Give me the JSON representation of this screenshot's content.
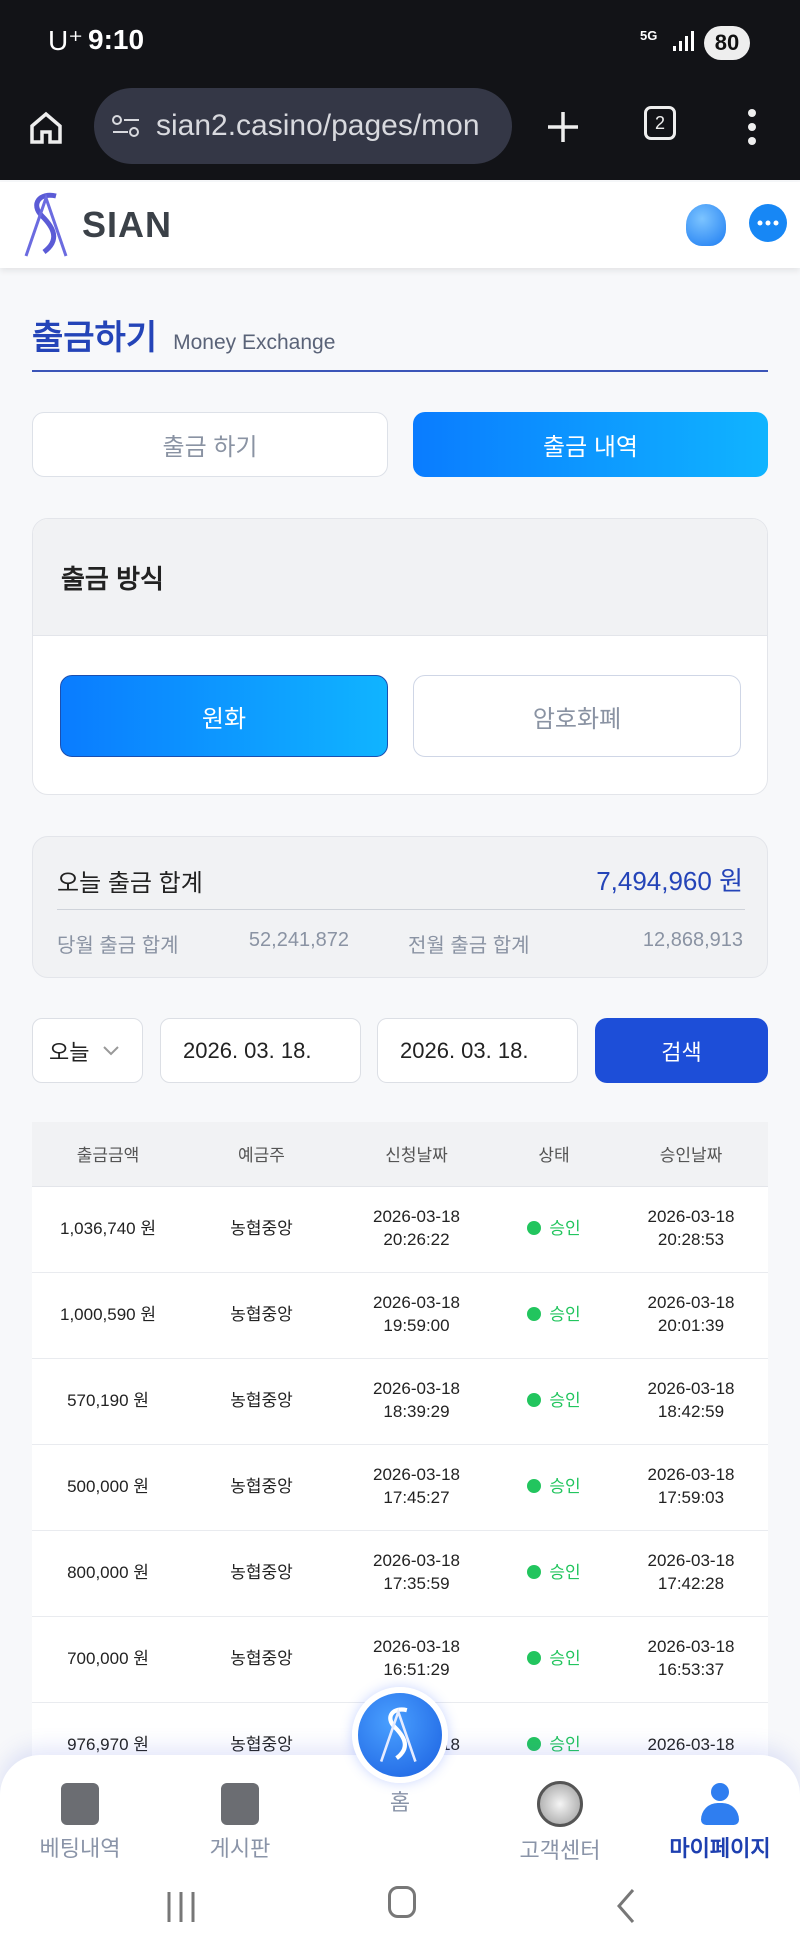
{
  "status_bar": {
    "carrier": "U⁺",
    "time": "9:10",
    "network": "5G",
    "battery": "80"
  },
  "browser": {
    "url": "sian2.casino/pages/mon",
    "tab_count": "2"
  },
  "header": {
    "logo_text": "SIAN"
  },
  "page": {
    "title": "출금하기",
    "subtitle": "Money Exchange"
  },
  "tabs": [
    {
      "label": "출금 하기",
      "active": false
    },
    {
      "label": "출금 내역",
      "active": true
    }
  ],
  "method": {
    "title": "출금 방식",
    "options": [
      {
        "label": "원화",
        "active": true
      },
      {
        "label": "암호화폐",
        "active": false
      }
    ]
  },
  "summary": {
    "today_label": "오늘 출금 합계",
    "today_value": "7,494,960 원",
    "month_label": "당월 출금 합계",
    "month_value": "52,241,872",
    "prev_label": "전월 출금 합계",
    "prev_value": "12,868,913"
  },
  "filter": {
    "period": "오늘",
    "start_date": "2026. 03. 18.",
    "end_date": "2026. 03. 18.",
    "search_label": "검색"
  },
  "table": {
    "headers": [
      "출금금액",
      "예금주",
      "신청날짜",
      "상태",
      "승인날짜"
    ],
    "rows": [
      {
        "amount": "1,036,740 원",
        "holder": "농협중앙",
        "req_date": "2026-03-18",
        "req_time": "20:26:22",
        "status": "승인",
        "appr_date": "2026-03-18",
        "appr_time": "20:28:53"
      },
      {
        "amount": "1,000,590 원",
        "holder": "농협중앙",
        "req_date": "2026-03-18",
        "req_time": "19:59:00",
        "status": "승인",
        "appr_date": "2026-03-18",
        "appr_time": "20:01:39"
      },
      {
        "amount": "570,190 원",
        "holder": "농협중앙",
        "req_date": "2026-03-18",
        "req_time": "18:39:29",
        "status": "승인",
        "appr_date": "2026-03-18",
        "appr_time": "18:42:59"
      },
      {
        "amount": "500,000 원",
        "holder": "농협중앙",
        "req_date": "2026-03-18",
        "req_time": "17:45:27",
        "status": "승인",
        "appr_date": "2026-03-18",
        "appr_time": "17:59:03"
      },
      {
        "amount": "800,000 원",
        "holder": "농협중앙",
        "req_date": "2026-03-18",
        "req_time": "17:35:59",
        "status": "승인",
        "appr_date": "2026-03-18",
        "appr_time": "17:42:28"
      },
      {
        "amount": "700,000 원",
        "holder": "농협중앙",
        "req_date": "2026-03-18",
        "req_time": "16:51:29",
        "status": "승인",
        "appr_date": "2026-03-18",
        "appr_time": "16:53:37"
      },
      {
        "amount": "976,970 원",
        "holder": "농협중앙",
        "req_date": "2026-03-18",
        "req_time": "",
        "status": "승인",
        "appr_date": "2026-03-18",
        "appr_time": ""
      }
    ]
  },
  "bottom_nav": [
    {
      "label": "베팅내역",
      "icon": "calendar-list-icon"
    },
    {
      "label": "게시판",
      "icon": "board-icon"
    },
    {
      "label": "홈",
      "icon": "home-logo-icon"
    },
    {
      "label": "고객센터",
      "icon": "support-headset-icon"
    },
    {
      "label": "마이페이지",
      "icon": "user-icon",
      "active": true
    }
  ],
  "colors": {
    "primary": "#1d4ed8",
    "accent_gradient": "#0a8cff",
    "title": "#2444b8",
    "approved": "#22c55e"
  }
}
